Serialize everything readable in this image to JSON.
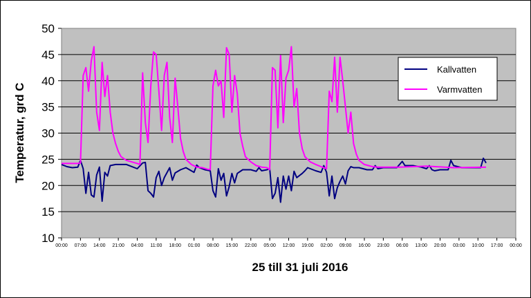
{
  "chart_data": {
    "type": "line",
    "title": "",
    "xlabel": "25 till 31 juli 2016",
    "ylabel": "Temperatur, grd C",
    "ylim": [
      10,
      50
    ],
    "yticks": [
      "10",
      "15",
      "20",
      "25",
      "30",
      "35",
      "40",
      "45",
      "50"
    ],
    "xticks": [
      "00:00",
      "07:00",
      "14:00",
      "21:00",
      "04:00",
      "11:00",
      "18:00",
      "01:00",
      "08:00",
      "15:00",
      "22:00",
      "05:00",
      "12:00",
      "19:00",
      "02:00",
      "09:00",
      "16:00",
      "23:00",
      "06:00",
      "13:00",
      "20:00",
      "03:00",
      "10:00",
      "17:00",
      "00:00"
    ],
    "grid": true,
    "legend_position": "top-right",
    "x_hours_step": 7,
    "series": [
      {
        "name": "Kallvatten",
        "color": "#000080",
        "points": [
          [
            0,
            24.0
          ],
          [
            2,
            23.6
          ],
          [
            4,
            23.4
          ],
          [
            6,
            23.5
          ],
          [
            7,
            24.8
          ],
          [
            8,
            23.2
          ],
          [
            9,
            18.5
          ],
          [
            10,
            22.5
          ],
          [
            11,
            18.2
          ],
          [
            12,
            17.8
          ],
          [
            13,
            22.0
          ],
          [
            14,
            23.5
          ],
          [
            15,
            17.0
          ],
          [
            16,
            22.5
          ],
          [
            17,
            21.8
          ],
          [
            18,
            23.8
          ],
          [
            20,
            24.0
          ],
          [
            24,
            24.0
          ],
          [
            28,
            23.2
          ],
          [
            30,
            24.3
          ],
          [
            31,
            24.4
          ],
          [
            32,
            19.0
          ],
          [
            33,
            18.5
          ],
          [
            34,
            17.8
          ],
          [
            35,
            21.5
          ],
          [
            36,
            22.7
          ],
          [
            37,
            20.0
          ],
          [
            38,
            21.5
          ],
          [
            40,
            23.4
          ],
          [
            41,
            21.0
          ],
          [
            42,
            22.4
          ],
          [
            44,
            23.0
          ],
          [
            46,
            23.4
          ],
          [
            49,
            22.5
          ],
          [
            50,
            23.9
          ],
          [
            51,
            23.4
          ],
          [
            53,
            23.0
          ],
          [
            55,
            22.8
          ],
          [
            56,
            19.0
          ],
          [
            57,
            17.8
          ],
          [
            58,
            23.2
          ],
          [
            59,
            21.0
          ],
          [
            60,
            22.3
          ],
          [
            61,
            18.0
          ],
          [
            62,
            19.8
          ],
          [
            63,
            22.3
          ],
          [
            64,
            20.5
          ],
          [
            65,
            22.3
          ],
          [
            67,
            23.0
          ],
          [
            70,
            23.0
          ],
          [
            72,
            22.7
          ],
          [
            73,
            23.4
          ],
          [
            74,
            22.8
          ],
          [
            76,
            23.0
          ],
          [
            77,
            23.2
          ],
          [
            78,
            17.5
          ],
          [
            79,
            18.5
          ],
          [
            80,
            21.5
          ],
          [
            81,
            16.8
          ],
          [
            82,
            21.8
          ],
          [
            83,
            19.3
          ],
          [
            84,
            21.8
          ],
          [
            85,
            19.0
          ],
          [
            86,
            22.7
          ],
          [
            87,
            21.5
          ],
          [
            89,
            22.3
          ],
          [
            90,
            22.8
          ],
          [
            91,
            23.4
          ],
          [
            94,
            22.8
          ],
          [
            96,
            22.5
          ],
          [
            97,
            23.8
          ],
          [
            98,
            22.5
          ],
          [
            99,
            18.0
          ],
          [
            100,
            21.8
          ],
          [
            101,
            17.5
          ],
          [
            102,
            19.6
          ],
          [
            103,
            20.8
          ],
          [
            104,
            21.8
          ],
          [
            105,
            20.3
          ],
          [
            106,
            22.8
          ],
          [
            107,
            23.6
          ],
          [
            108,
            23.4
          ],
          [
            110,
            23.4
          ],
          [
            113,
            23.0
          ],
          [
            115,
            23.0
          ],
          [
            116,
            23.8
          ],
          [
            117,
            23.2
          ],
          [
            119,
            23.4
          ],
          [
            121,
            23.4
          ],
          [
            124,
            23.4
          ],
          [
            126,
            24.6
          ],
          [
            127,
            23.8
          ],
          [
            130,
            23.8
          ],
          [
            133,
            23.5
          ],
          [
            135,
            23.2
          ],
          [
            136,
            23.8
          ],
          [
            137,
            23.0
          ],
          [
            138,
            22.8
          ],
          [
            140,
            23.0
          ],
          [
            143,
            23.0
          ],
          [
            144,
            24.8
          ],
          [
            145,
            23.8
          ],
          [
            148,
            23.4
          ],
          [
            150,
            23.4
          ],
          [
            153,
            23.4
          ],
          [
            155,
            23.4
          ],
          [
            156,
            25.2
          ],
          [
            157,
            24.3
          ]
        ]
      },
      {
        "name": "Varmvatten",
        "color": "#ff00ff",
        "points": [
          [
            0,
            24.2
          ],
          [
            6,
            24.2
          ],
          [
            7,
            24.3
          ],
          [
            8,
            41.0
          ],
          [
            9,
            42.5
          ],
          [
            10,
            38.0
          ],
          [
            11,
            43.8
          ],
          [
            12,
            46.5
          ],
          [
            13,
            34.0
          ],
          [
            14,
            30.5
          ],
          [
            15,
            43.5
          ],
          [
            16,
            37.0
          ],
          [
            17,
            41.0
          ],
          [
            18,
            34.0
          ],
          [
            19,
            30.0
          ],
          [
            20,
            28.0
          ],
          [
            21,
            26.5
          ],
          [
            22,
            25.5
          ],
          [
            24,
            24.8
          ],
          [
            26,
            24.5
          ],
          [
            28,
            24.2
          ],
          [
            29,
            24.0
          ],
          [
            30,
            41.5
          ],
          [
            31,
            32.0
          ],
          [
            32,
            28.2
          ],
          [
            33,
            39.0
          ],
          [
            34,
            45.5
          ],
          [
            35,
            45.0
          ],
          [
            36,
            38.0
          ],
          [
            37,
            30.5
          ],
          [
            38,
            41.0
          ],
          [
            39,
            43.5
          ],
          [
            40,
            33.0
          ],
          [
            41,
            28.2
          ],
          [
            42,
            40.5
          ],
          [
            43,
            35.0
          ],
          [
            44,
            29.0
          ],
          [
            45,
            26.5
          ],
          [
            46,
            25.0
          ],
          [
            48,
            24.0
          ],
          [
            50,
            23.5
          ],
          [
            52,
            23.4
          ],
          [
            54,
            23.1
          ],
          [
            55,
            23.0
          ],
          [
            56,
            39.0
          ],
          [
            57,
            42.0
          ],
          [
            58,
            39.0
          ],
          [
            59,
            40.0
          ],
          [
            60,
            33.0
          ],
          [
            61,
            46.3
          ],
          [
            62,
            45.0
          ],
          [
            63,
            34.0
          ],
          [
            64,
            41.0
          ],
          [
            65,
            37.5
          ],
          [
            66,
            30.0
          ],
          [
            67,
            27.5
          ],
          [
            68,
            25.5
          ],
          [
            70,
            24.5
          ],
          [
            72,
            23.8
          ],
          [
            74,
            23.5
          ],
          [
            76,
            23.4
          ],
          [
            77,
            23.0
          ],
          [
            78,
            42.5
          ],
          [
            79,
            42.0
          ],
          [
            80,
            31.0
          ],
          [
            81,
            44.8
          ],
          [
            82,
            32.0
          ],
          [
            83,
            40.5
          ],
          [
            84,
            42.0
          ],
          [
            85,
            46.5
          ],
          [
            86,
            35.0
          ],
          [
            87,
            38.5
          ],
          [
            88,
            30.0
          ],
          [
            89,
            27.0
          ],
          [
            90,
            25.5
          ],
          [
            92,
            24.5
          ],
          [
            94,
            24.0
          ],
          [
            96,
            23.6
          ],
          [
            97,
            23.4
          ],
          [
            98,
            23.2
          ],
          [
            99,
            38.0
          ],
          [
            100,
            36.0
          ],
          [
            101,
            44.5
          ],
          [
            102,
            34.0
          ],
          [
            103,
            44.5
          ],
          [
            104,
            40.0
          ],
          [
            105,
            35.0
          ],
          [
            106,
            30.0
          ],
          [
            107,
            34.0
          ],
          [
            108,
            28.0
          ],
          [
            109,
            26.0
          ],
          [
            110,
            24.8
          ],
          [
            112,
            24.0
          ],
          [
            115,
            23.6
          ],
          [
            117,
            23.5
          ],
          [
            125,
            23.5
          ],
          [
            135,
            23.7
          ],
          [
            145,
            23.4
          ],
          [
            157,
            23.5
          ]
        ]
      }
    ]
  }
}
